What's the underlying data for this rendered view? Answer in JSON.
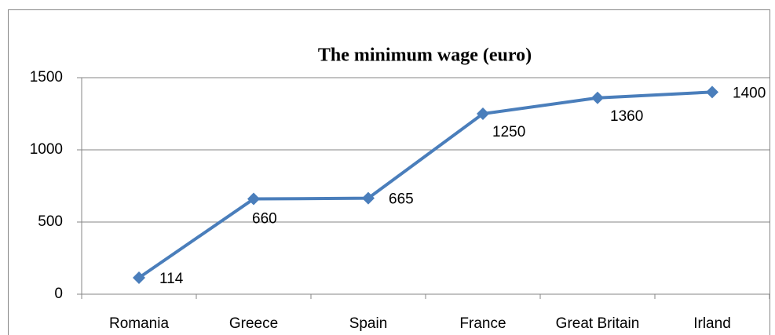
{
  "chart_data": {
    "type": "line",
    "title": "The minimum wage (euro)",
    "categories": [
      "Romania",
      "Greece",
      "Spain",
      "France",
      "Great Britain",
      "Irland"
    ],
    "values": [
      114,
      660,
      665,
      1250,
      1360,
      1400
    ],
    "color": "#4a7ebb",
    "ylim": [
      0,
      1500
    ],
    "yticks": [
      0,
      500,
      1000,
      1500
    ],
    "grid": true
  }
}
